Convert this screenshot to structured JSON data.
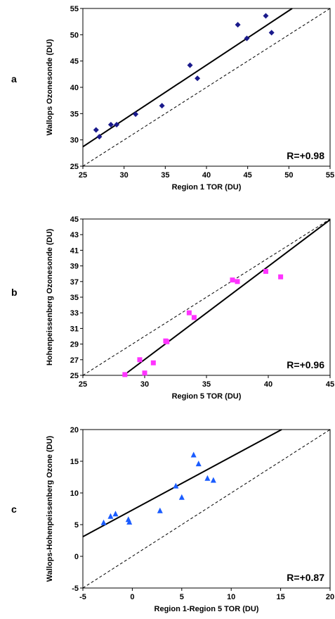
{
  "chart_data": [
    {
      "type": "scatter",
      "panel_label": "a",
      "xlabel": "Region 1 TOR (DU)",
      "ylabel": "Wallops Ozonesonde (DU)",
      "xlim": [
        25,
        55
      ],
      "ylim": [
        25,
        55
      ],
      "xticks": [
        25,
        30,
        35,
        40,
        45,
        50,
        55
      ],
      "yticks": [
        25,
        30,
        35,
        40,
        45,
        50,
        55
      ],
      "annotation": "R=+0.98",
      "marker": "diamond",
      "color": "#1a1a8c",
      "points": [
        [
          26.6,
          31.9
        ],
        [
          27.0,
          30.6
        ],
        [
          28.4,
          32.9
        ],
        [
          29.1,
          32.9
        ],
        [
          31.4,
          34.9
        ],
        [
          34.6,
          36.5
        ],
        [
          38.0,
          44.2
        ],
        [
          38.9,
          41.7
        ],
        [
          43.8,
          51.9
        ],
        [
          44.9,
          49.3
        ],
        [
          47.2,
          53.6
        ],
        [
          47.9,
          50.4
        ]
      ],
      "fit_line": [
        [
          25,
          28.7
        ],
        [
          50.4,
          55
        ]
      ],
      "one_to_one": [
        [
          25,
          25
        ],
        [
          55,
          55
        ]
      ],
      "grid": false
    },
    {
      "type": "scatter",
      "panel_label": "b",
      "xlabel": "Region 5 TOR (DU)",
      "ylabel": "Hohenpeissenberg Ozonesonde (DU)",
      "xlim": [
        25,
        45
      ],
      "ylim": [
        25,
        45
      ],
      "xticks": [
        25,
        30,
        35,
        40,
        45
      ],
      "yticks": [
        25,
        27,
        29,
        31,
        33,
        35,
        37,
        39,
        41,
        43,
        45
      ],
      "annotation": "R=+0.96",
      "marker": "square",
      "color": "#ff33ff",
      "points": [
        [
          28.4,
          25.1
        ],
        [
          29.6,
          27.0
        ],
        [
          30.0,
          25.3
        ],
        [
          30.7,
          26.6
        ],
        [
          31.7,
          29.4
        ],
        [
          31.8,
          29.3
        ],
        [
          33.6,
          33.0
        ],
        [
          34.0,
          32.4
        ],
        [
          37.1,
          37.2
        ],
        [
          37.5,
          37.0
        ],
        [
          39.8,
          38.3
        ],
        [
          41.0,
          37.6
        ]
      ],
      "fit_line": [
        [
          28.3,
          25
        ],
        [
          45,
          44.9
        ]
      ],
      "one_to_one": [
        [
          25,
          25
        ],
        [
          45,
          45
        ]
      ],
      "grid": false
    },
    {
      "type": "scatter",
      "panel_label": "c",
      "xlabel": "Region 1-Region 5 TOR (DU)",
      "ylabel": "Wallops-Hohenpeissenberg Ozone (DU)",
      "xlim": [
        -5,
        20
      ],
      "ylim": [
        -5,
        20
      ],
      "xticks": [
        -5,
        0,
        5,
        10,
        15,
        20
      ],
      "yticks": [
        -5,
        0,
        5,
        10,
        15,
        20
      ],
      "annotation": "R=+0.87",
      "marker": "triangle",
      "color": "#1a5cff",
      "points": [
        [
          -2.9,
          5.3
        ],
        [
          -2.2,
          6.3
        ],
        [
          -1.7,
          6.7
        ],
        [
          -0.4,
          5.8
        ],
        [
          -0.3,
          5.4
        ],
        [
          2.8,
          7.2
        ],
        [
          4.4,
          11.1
        ],
        [
          5.0,
          9.3
        ],
        [
          6.2,
          16.0
        ],
        [
          6.7,
          14.6
        ],
        [
          7.6,
          12.3
        ],
        [
          8.2,
          12.0
        ]
      ],
      "fit_line": [
        [
          -5,
          3.1
        ],
        [
          15.1,
          20
        ]
      ],
      "one_to_one": [
        [
          -5,
          -5
        ],
        [
          20,
          20
        ]
      ],
      "grid": false
    }
  ]
}
